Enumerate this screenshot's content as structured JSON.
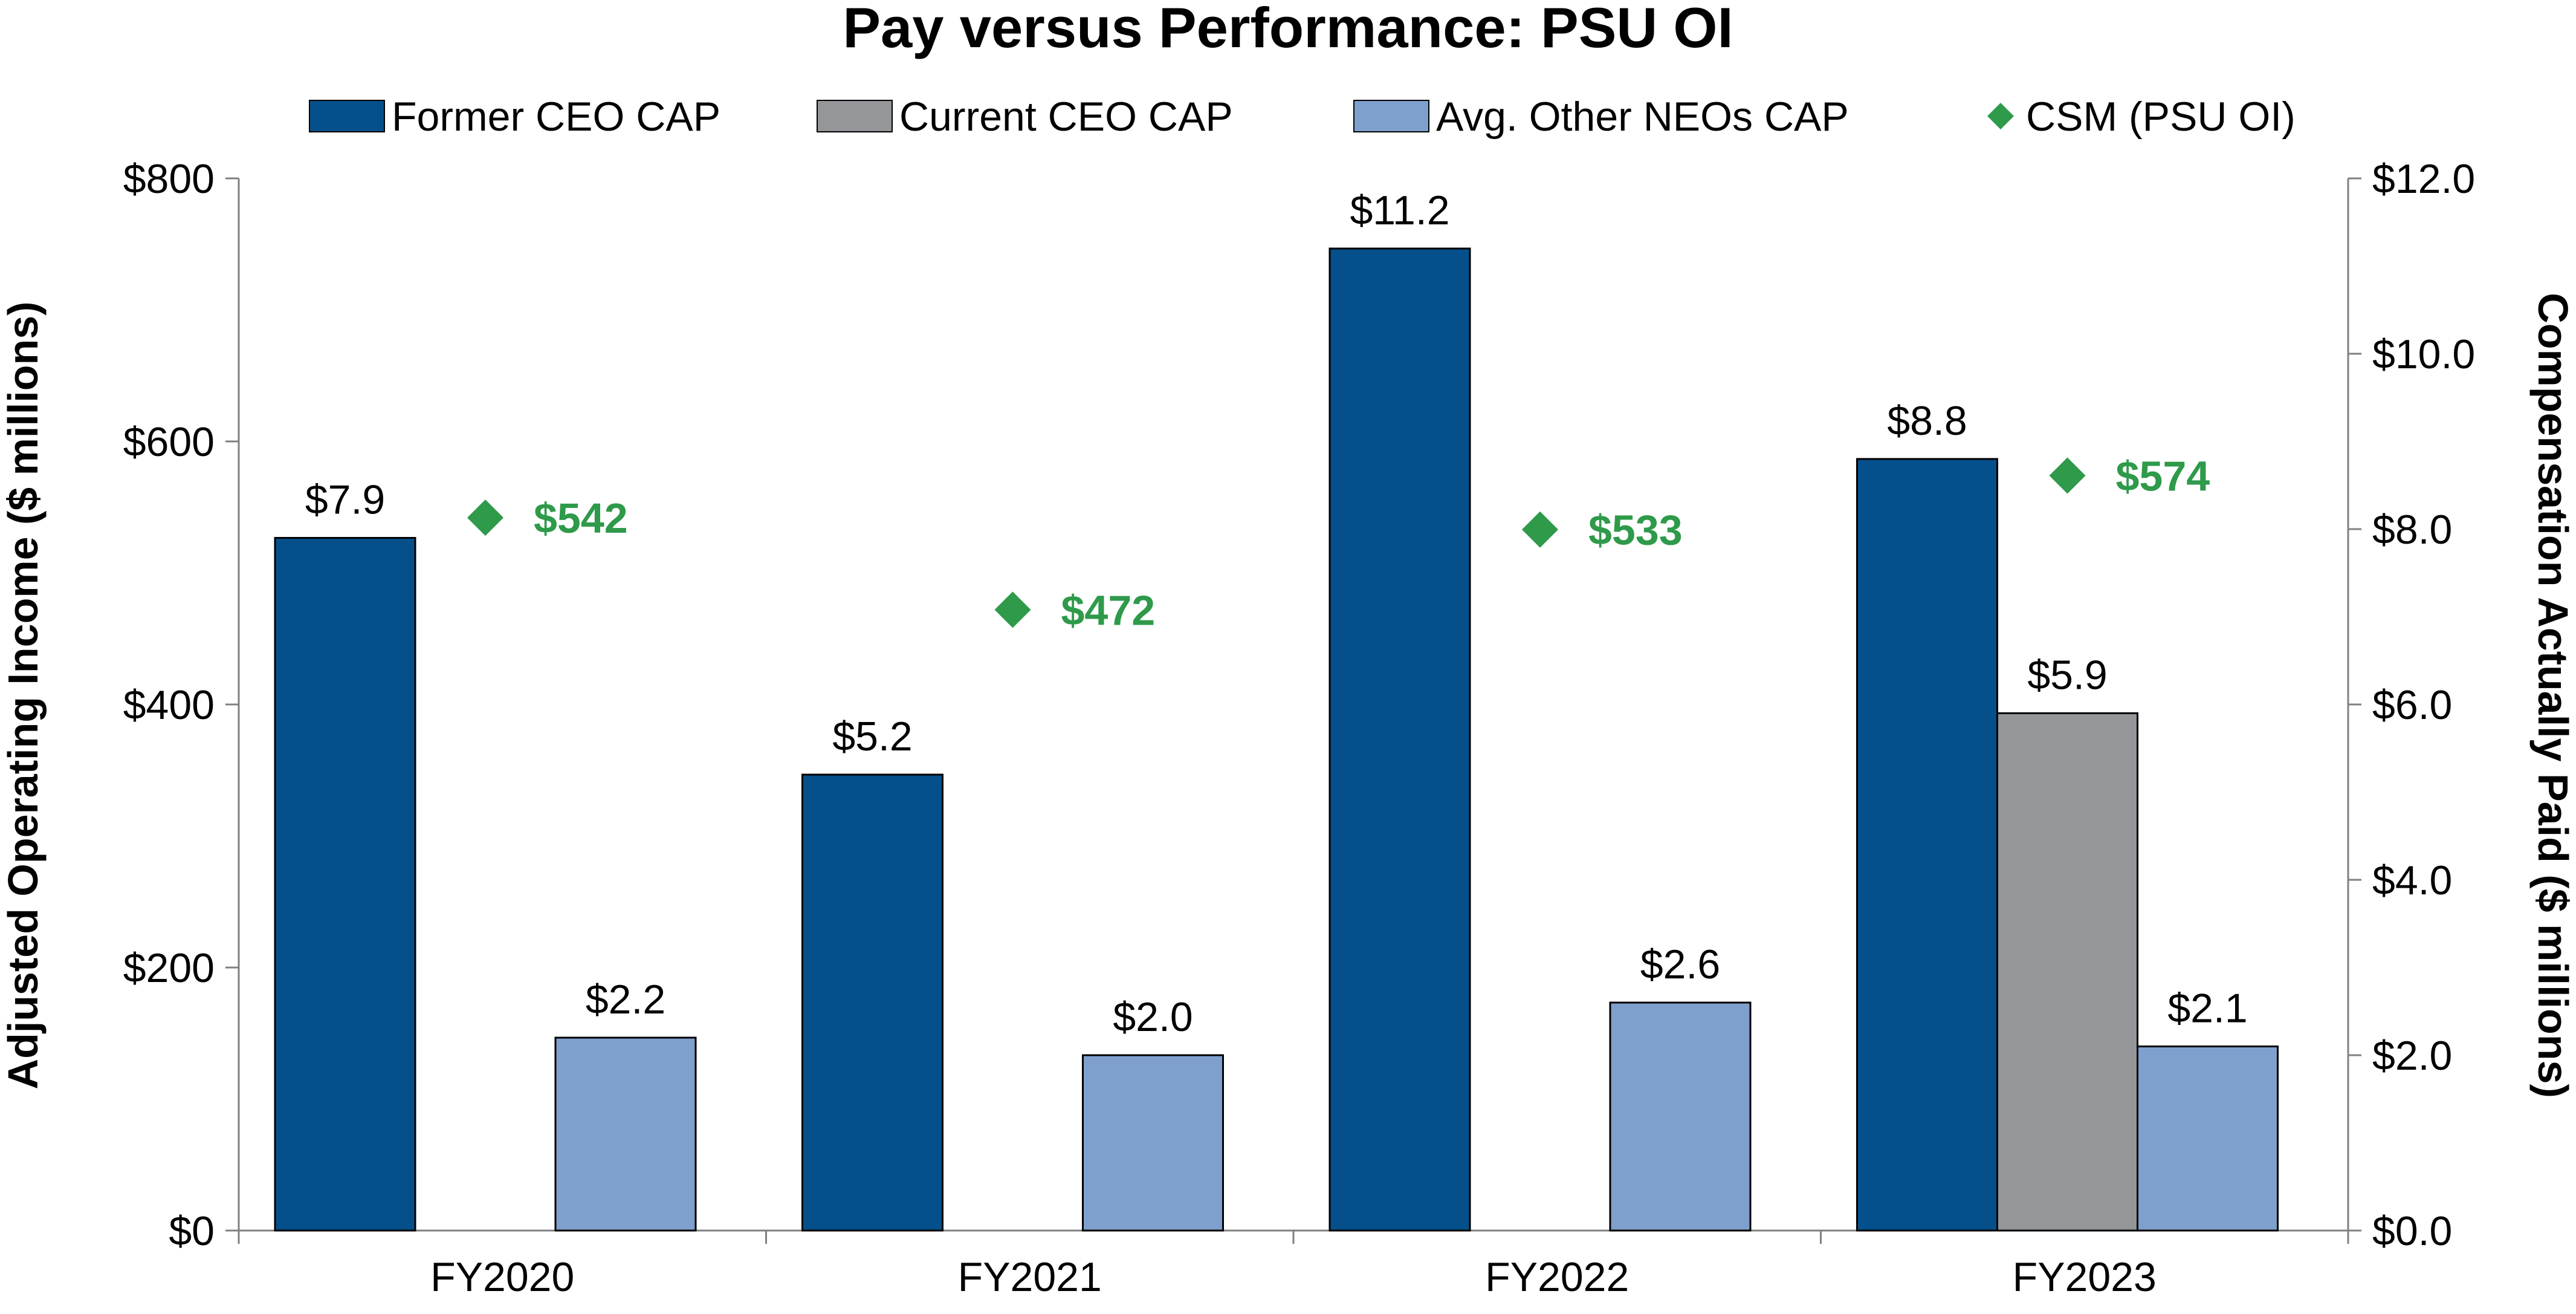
{
  "chart_data": {
    "type": "bar",
    "title": "Pay versus Performance: PSU OI",
    "categories": [
      "FY2020",
      "FY2021",
      "FY2022",
      "FY2023"
    ],
    "ylabel": "Adjusted Operating Income ($ millions)",
    "y2label": "Compensation Actually Paid ($ millions)",
    "ylim": [
      0,
      800
    ],
    "y2lim": [
      0,
      12
    ],
    "yticks": [
      "$0",
      "$200",
      "$400",
      "$600",
      "$800"
    ],
    "y2ticks": [
      "$0.0",
      "$2.0",
      "$4.0",
      "$6.0",
      "$8.0",
      "$10.0",
      "$12.0"
    ],
    "legend_position": "top",
    "grid": false,
    "series": [
      {
        "name": "Former CEO CAP",
        "axis": "right",
        "color": "#05508b",
        "values": [
          7.9,
          5.2,
          11.2,
          8.8
        ],
        "labels": [
          "$7.9",
          "$5.2",
          "$11.2",
          "$8.8"
        ]
      },
      {
        "name": "Current CEO CAP",
        "axis": "right",
        "color": "#959699",
        "values": [
          null,
          null,
          null,
          5.9
        ],
        "labels": [
          "",
          "",
          "",
          "$5.9"
        ]
      },
      {
        "name": "Avg. Other NEOs CAP",
        "axis": "right",
        "color": "#7f9fcd",
        "values": [
          2.2,
          2.0,
          2.6,
          2.1
        ],
        "labels": [
          "$2.2",
          "$2.0",
          "$2.6",
          "$2.1"
        ]
      },
      {
        "name": "CSM (PSU OI)",
        "axis": "left",
        "type": "scatter",
        "marker": "diamond",
        "color": "#2e9a4a",
        "values": [
          542,
          472,
          533,
          574
        ],
        "labels": [
          "$542",
          "$472",
          "$533",
          "$574"
        ]
      }
    ]
  }
}
